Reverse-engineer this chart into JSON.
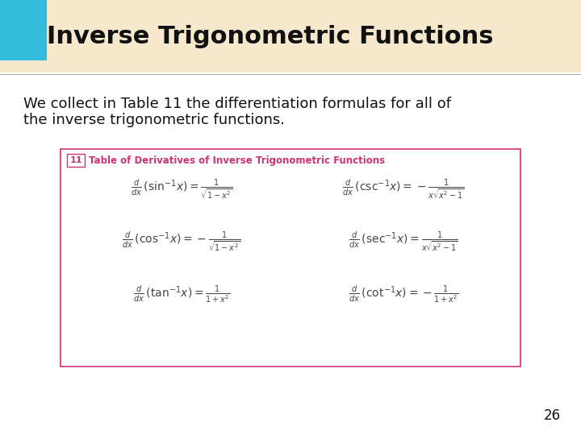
{
  "title": "Inverse Trigonometric Functions",
  "title_bg_color": "#f5e8cc",
  "title_square_color": "#33bbdd",
  "title_fontsize": 22,
  "body_line1": "We collect in Table 11 the differentiation formulas for all of",
  "body_line2": "the inverse trigonometric functions.",
  "body_fontsize": 13,
  "background_color": "#ffffff",
  "table_border_color": "#cc3377",
  "table_header_color": "#cc3377",
  "table_number": "11",
  "table_title": "Table of Derivatives of Inverse Trigonometric Functions",
  "formula_color": "#444444",
  "page_number": "26",
  "formulas_left": [
    "\\frac{d}{dx}\\,(\\sin^{-1}\\!x) = \\frac{1}{\\sqrt{1-x^2}}",
    "\\frac{d}{dx}\\,(\\cos^{-1}\\!x) = -\\frac{1}{\\sqrt{1-x^2}}",
    "\\frac{d}{dx}\\,(\\tan^{-1}\\!x) = \\frac{1}{1+x^2}"
  ],
  "formulas_right": [
    "\\frac{d}{dx}\\,(\\csc^{-1}\\!x) = -\\frac{1}{x\\sqrt{x^2-1}}",
    "\\frac{d}{dx}\\,(\\sec^{-1}\\!x) = \\frac{1}{x\\sqrt{x^2-1}}",
    "\\frac{d}{dx}\\,(\\cot^{-1}\\!x) = -\\frac{1}{1+x^2}"
  ]
}
